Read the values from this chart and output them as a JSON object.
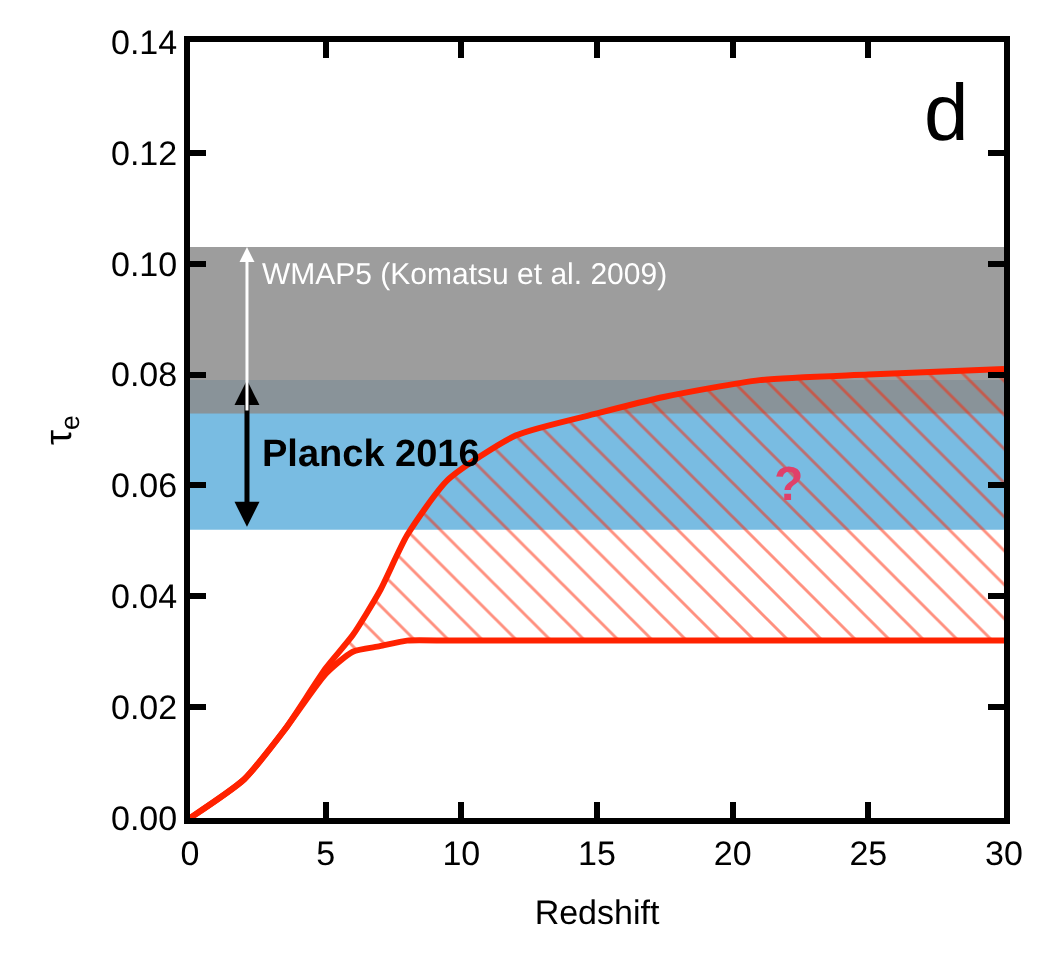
{
  "chart_data": {
    "type": "line",
    "xlabel": "Redshift",
    "ylabel": "τ$_{e}$",
    "x": [
      0,
      2,
      3.5,
      5,
      6,
      7,
      8,
      9.5,
      12,
      15,
      17.5,
      21,
      25,
      30
    ],
    "series": [
      {
        "color": "#ff2200",
        "values": [
          0,
          0.007,
          0.016,
          0.026,
          0.03,
          0.031,
          0.032,
          0.032,
          0.032,
          0.032,
          0.032,
          0.032,
          0.032,
          0.032
        ]
      },
      {
        "type": "area",
        "color": "#ff2200",
        "values": [
          0,
          0.007,
          0.016,
          0.027,
          0.033,
          0.041,
          0.051,
          0.061,
          0.069,
          0.073,
          0.076,
          0.079,
          0.08,
          0.081
        ]
      }
    ],
    "bands": [
      {
        "axis": "y",
        "from": 0.052,
        "to": 0.079,
        "label": "Planck 2016",
        "color": "#72b8e0"
      },
      {
        "axis": "y",
        "from": 0.073,
        "to": 0.103,
        "label": "WMAP5 (Komatsu et al. 2009)",
        "color": "#8c8c8c"
      }
    ],
    "annotations": [
      "d",
      "?"
    ],
    "xlim": [
      0,
      30
    ],
    "xticks": [
      0,
      5,
      10,
      15,
      20,
      25,
      30
    ],
    "ylim": [
      0,
      0.14
    ],
    "yticks": [
      {
        "value": 0,
        "label": "0.00"
      },
      {
        "value": 0.02,
        "label": "0.02"
      },
      {
        "value": 0.04,
        "label": "0.04"
      },
      {
        "value": 0.06,
        "label": "0.06"
      },
      {
        "value": 0.08,
        "label": "0.08"
      },
      {
        "value": 0.1,
        "label": "0.10"
      },
      {
        "value": 0.12,
        "label": "0.12"
      },
      {
        "value": 0.14,
        "label": "0.14"
      }
    ],
    "grid": false
  }
}
